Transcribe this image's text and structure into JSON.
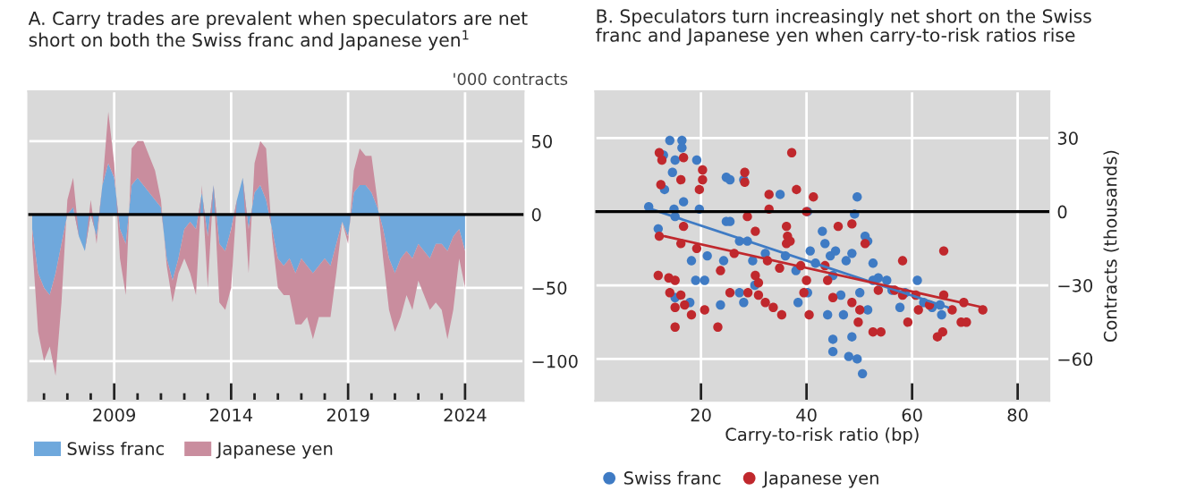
{
  "chart_data": [
    {
      "type": "area",
      "stacked": true,
      "title": "A. Carry trades are prevalent when speculators are net\nshort on both the Swiss franc and Japanese yen$^{1}$",
      "ylabel": "'000 contracts",
      "x": [
        "2005-07",
        "2005-10",
        "2006-01",
        "2006-04",
        "2006-07",
        "2006-10",
        "2007-01",
        "2007-04",
        "2007-07",
        "2007-10",
        "2008-01",
        "2008-04",
        "2008-07",
        "2008-10",
        "2009-01",
        "2009-04",
        "2009-07",
        "2009-10",
        "2010-01",
        "2010-04",
        "2010-07",
        "2010-10",
        "2011-01",
        "2011-04",
        "2011-07",
        "2011-10",
        "2012-01",
        "2012-04",
        "2012-07",
        "2012-10",
        "2013-01",
        "2013-04",
        "2013-07",
        "2013-10",
        "2014-01",
        "2014-04",
        "2014-07",
        "2014-10",
        "2015-01",
        "2015-04",
        "2015-07",
        "2015-10",
        "2016-01",
        "2016-04",
        "2016-07",
        "2016-10",
        "2017-01",
        "2017-04",
        "2017-07",
        "2017-10",
        "2018-01",
        "2018-04",
        "2018-07",
        "2018-10",
        "2019-01",
        "2019-04",
        "2019-07",
        "2019-10",
        "2020-01",
        "2020-04",
        "2020-07",
        "2020-10",
        "2021-01",
        "2021-04",
        "2021-07",
        "2021-10",
        "2022-01",
        "2022-04",
        "2022-07",
        "2022-10",
        "2023-01",
        "2023-04",
        "2023-07",
        "2023-10",
        "2024-01"
      ],
      "series": [
        {
          "name": "Swiss franc",
          "color": "#6fa8dc",
          "values": [
            -10,
            -40,
            -50,
            -55,
            -40,
            -20,
            0,
            5,
            -15,
            -25,
            0,
            -15,
            20,
            35,
            25,
            -10,
            -20,
            20,
            25,
            20,
            15,
            10,
            5,
            -30,
            -45,
            -30,
            -10,
            -5,
            -10,
            15,
            -15,
            20,
            -20,
            -25,
            -10,
            10,
            25,
            -10,
            15,
            20,
            10,
            -10,
            -30,
            -35,
            -30,
            -40,
            -30,
            -35,
            -40,
            -35,
            -30,
            -35,
            -20,
            -5,
            -15,
            15,
            20,
            20,
            15,
            5,
            -10,
            -30,
            -40,
            -30,
            -25,
            -30,
            -20,
            -25,
            -30,
            -20,
            -20,
            -25,
            -15,
            -10,
            -25
          ]
        },
        {
          "name": "Japanese yen",
          "color": "#c98d9e",
          "values": [
            -10,
            -40,
            -50,
            -35,
            -70,
            -40,
            10,
            20,
            0,
            0,
            10,
            -5,
            0,
            35,
            10,
            -20,
            -35,
            25,
            25,
            30,
            25,
            20,
            5,
            -5,
            -15,
            -10,
            -20,
            -35,
            -45,
            5,
            -35,
            0,
            -40,
            -40,
            -40,
            0,
            0,
            -30,
            20,
            30,
            35,
            -5,
            -20,
            -20,
            -25,
            -35,
            -45,
            -35,
            -45,
            -35,
            -40,
            -35,
            -20,
            0,
            -5,
            15,
            25,
            20,
            25,
            5,
            -20,
            -35,
            -40,
            -40,
            -30,
            -35,
            -25,
            -30,
            -35,
            -40,
            -45,
            -60,
            -50,
            -20,
            -25
          ]
        }
      ],
      "xlim": [
        "2005-05",
        "2026-07"
      ],
      "xticks": [
        {
          "value": "2006",
          "label": null
        },
        {
          "value": "2007",
          "label": null
        },
        {
          "value": "2008",
          "label": null
        },
        {
          "value": "2009",
          "label": "2009"
        },
        {
          "value": "2010",
          "label": null
        },
        {
          "value": "2011",
          "label": null
        },
        {
          "value": "2012",
          "label": null
        },
        {
          "value": "2013",
          "label": null
        },
        {
          "value": "2014",
          "label": "2014"
        },
        {
          "value": "2015",
          "label": null
        },
        {
          "value": "2016",
          "label": null
        },
        {
          "value": "2017",
          "label": null
        },
        {
          "value": "2018",
          "label": null
        },
        {
          "value": "2019",
          "label": "2019"
        },
        {
          "value": "2020",
          "label": null
        },
        {
          "value": "2021",
          "label": null
        },
        {
          "value": "2022",
          "label": null
        },
        {
          "value": "2023",
          "label": null
        },
        {
          "value": "2024",
          "label": "2024"
        }
      ],
      "ylim": [
        -127,
        84
      ],
      "yticks": [
        -100,
        -50,
        0,
        50
      ],
      "ref_lines": [
        {
          "axis": "y",
          "value": 0,
          "color": "#000000"
        }
      ],
      "grid": true,
      "legend": "bottom"
    },
    {
      "type": "scatter",
      "marker": "circle",
      "title": "B. Speculators turn increasingly net short on the Swiss\nfranc and Japanese yen when carry-to-risk ratios rise",
      "xlabel": "Carry-to-risk ratio (bp)",
      "ylabel": "Contracts (thousands)",
      "series": [
        {
          "name": "Swiss franc",
          "color": "#3f7bc4",
          "x": [
            10.1,
            14.1,
            16.4,
            16.4,
            12.9,
            15.1,
            14.6,
            19.2,
            13.1,
            14.9,
            11.9,
            15.1,
            16.7,
            19.7,
            24.8,
            25.5,
            28.1,
            24.8,
            25.5,
            18.2,
            21.2,
            19.0,
            20.7,
            15.1,
            17.9,
            23.7,
            24.3,
            27.3,
            28.8,
            29.8,
            27.3,
            28.1,
            30.2,
            32.2,
            35,
            36,
            38,
            38.4,
            40.2,
            40.2,
            40.7,
            43,
            43.5,
            41.7,
            44.5,
            45,
            44,
            47,
            45,
            45,
            48,
            49.6,
            50.6,
            48.6,
            45.5,
            47.5,
            48.6,
            49.6,
            49.1,
            51.1,
            51.6,
            50.1,
            52.6,
            53.6,
            51.6,
            55.2,
            56.2,
            57.7,
            58.7,
            61,
            62.2,
            63.8,
            65.3,
            65.6,
            46.5,
            52.6
          ],
          "values": [
            2,
            29,
            29,
            26,
            23,
            21,
            16,
            21,
            9,
            1,
            -7,
            -2,
            4,
            1,
            14,
            13,
            13,
            -4,
            -4,
            -20,
            -18,
            -28,
            -28,
            -35,
            -37,
            -38,
            -20,
            -12,
            -12,
            -20,
            -33,
            -37,
            -30,
            -17,
            7,
            -18,
            -24,
            -37,
            -33,
            0,
            -16,
            -8,
            -13,
            -21,
            -18,
            -26,
            -42,
            -42,
            -52,
            -57,
            -59,
            -60,
            -66,
            -51,
            -16,
            -20,
            -17,
            6,
            -1,
            -10,
            -12,
            -33,
            -21,
            -27,
            -40,
            -28,
            -32,
            -39,
            -33,
            -28,
            -37,
            -39,
            -38,
            -42,
            -34,
            -28
          ]
        },
        {
          "name": "Japanese yen",
          "color": "#c0282d",
          "x": [
            12.1,
            12.6,
            16.7,
            20.3,
            20.3,
            19.7,
            16.2,
            12.4,
            28.3,
            28.3,
            37.2,
            32.9,
            38.1,
            41.3,
            32.9,
            40,
            28.8,
            36.2,
            36.4,
            36.2,
            36.9,
            12.1,
            16.7,
            16.2,
            19.2,
            26.3,
            30.3,
            30.3,
            23.7,
            32.6,
            30.9,
            11.9,
            13.9,
            15.1,
            14.1,
            16.2,
            15.1,
            16.9,
            18.2,
            20.7,
            15.1,
            23.2,
            25.5,
            28.9,
            30.9,
            32.2,
            33.7,
            35.3,
            34.9,
            38.9,
            40,
            39.5,
            40.5,
            43.5,
            44,
            46,
            48.6,
            45,
            48.6,
            50.1,
            49.8,
            52.6,
            54.1,
            51.1,
            53.6,
            58.2,
            56.7,
            58.2,
            60.7,
            59.2,
            61.2,
            63.3,
            64.8,
            65.8,
            66,
            66,
            67.6,
            69.8,
            69.3,
            70.3,
            73.4
          ],
          "values": [
            24,
            21,
            22,
            17,
            13,
            9,
            13,
            11,
            16,
            12,
            24,
            7,
            9,
            6,
            1,
            0,
            -2,
            -6,
            -10,
            -13,
            -12,
            -10,
            -6,
            -13,
            -15,
            -17,
            -8,
            -26,
            -24,
            -20,
            -29,
            -26,
            -27,
            -28,
            -33,
            -34,
            -39,
            -38,
            -42,
            -40,
            -47,
            -47,
            -33,
            -33,
            -34,
            -37,
            -39,
            -42,
            -23,
            -22,
            -28,
            -33,
            -42,
            -22,
            -28,
            -6,
            -5,
            -35,
            -37,
            -40,
            -45,
            -49,
            -49,
            -13,
            -32,
            -20,
            -32,
            -34,
            -34,
            -45,
            -40,
            -38,
            -51,
            -49,
            -16,
            -34,
            -40,
            -37,
            -45,
            -45,
            -40
          ]
        },
        {
          "type": "line",
          "marker": "none",
          "color": "#3f7bc4",
          "x": [
            10.6,
            66.8
          ],
          "values": [
            1,
            -39
          ]
        },
        {
          "type": "line",
          "marker": "none",
          "color": "#c0282d",
          "x": [
            13.1,
            73.4
          ],
          "values": [
            -10,
            -39
          ]
        }
      ],
      "xlim": [
        0,
        86
      ],
      "xticks": [
        20,
        40,
        60,
        80
      ],
      "ylim": [
        -77,
        49
      ],
      "yticks": [
        -60,
        -30,
        0,
        30
      ],
      "ref_lines": [
        {
          "axis": "y",
          "value": 0,
          "color": "#000000"
        }
      ],
      "grid": true,
      "legend": "bottom"
    }
  ]
}
